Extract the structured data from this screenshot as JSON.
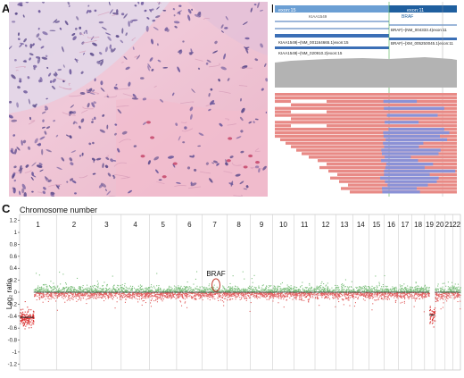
{
  "panels": {
    "a": {
      "letter": "A"
    },
    "b": {
      "letter": "B"
    },
    "c": {
      "letter": "C"
    }
  },
  "panel_b": {
    "exon_labels": [
      "exon:15",
      "exon:11"
    ],
    "gene_label": "BRAF",
    "small_label": "KIAA1549",
    "transcripts": [
      "KIAA1549|~(NM_001164665.1)exon:15",
      "KIAA1549|~(NM_020910.2)exon:15",
      "BRAF|~(NM_004333.4)exon:11",
      "BRAF|~(XM_005250045.1)exon:11"
    ]
  },
  "chart_data": {
    "type": "scatter",
    "title": "",
    "xlabel": "Chromosome number",
    "ylabel": "Log₂ ratio",
    "ylim": [
      -1.3,
      1.3
    ],
    "yticks": [
      -1.2,
      -1.0,
      -0.8,
      -0.6,
      -0.4,
      -0.2,
      0,
      0.2,
      0.4,
      0.6,
      0.8,
      1.0,
      1.2
    ],
    "ytick_labels": [
      "-1.2",
      "-1",
      "-0.8",
      "-0.6",
      "-0.4",
      "-0.2",
      "0",
      "0.2",
      "0.4",
      "0.6",
      "0.8",
      "1",
      "1.2"
    ],
    "chromosomes": [
      "1",
      "2",
      "3",
      "4",
      "5",
      "6",
      "7",
      "8",
      "9",
      "10",
      "11",
      "12",
      "13",
      "14",
      "15",
      "16",
      "17",
      "18",
      "19",
      "20",
      "21",
      "22"
    ],
    "chromosome_widths": [
      1.15,
      1.1,
      0.92,
      0.88,
      0.85,
      0.8,
      0.78,
      0.72,
      0.7,
      0.66,
      0.66,
      0.66,
      0.52,
      0.5,
      0.48,
      0.44,
      0.42,
      0.4,
      0.32,
      0.32,
      0.24,
      0.24
    ],
    "series": [
      {
        "color_pos": "#7fc07f",
        "color_neg": "#e06060"
      }
    ],
    "segments": [
      {
        "chrom": "1",
        "part": "p-arm",
        "mean": -0.42
      },
      {
        "chrom": "1",
        "part": "q-arm",
        "mean": 0.0
      },
      {
        "chrom": "19",
        "part": "q-arm",
        "mean": -0.38
      },
      {
        "chrom": "2-22",
        "part": "rest",
        "mean": 0.0
      }
    ],
    "annotation": {
      "label": "BRAF",
      "chrom": "7",
      "value": 0.12
    }
  }
}
